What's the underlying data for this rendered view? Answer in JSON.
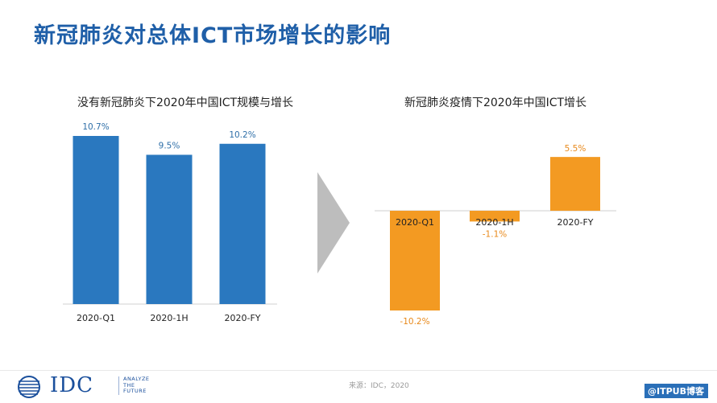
{
  "page": {
    "title": "新冠肺炎对总体ICT市场增长的影响",
    "source": "来源：IDC，2020",
    "watermark": "@ITPUB博客"
  },
  "logo": {
    "name": "IDC",
    "tagline": [
      "ANALYZE",
      "THE",
      "FUTURE"
    ]
  },
  "chart_data": [
    {
      "type": "bar",
      "title": "没有新冠肺炎下2020年中国ICT规模与增长",
      "categories": [
        "2020-Q1",
        "2020-1H",
        "2020-FY"
      ],
      "values": [
        10.7,
        9.5,
        10.2
      ],
      "data_labels": [
        "10.7%",
        "9.5%",
        "10.2%"
      ],
      "unit": "%",
      "ylim": [
        0,
        10.7
      ],
      "color": "#2a78bf",
      "grid": false,
      "legend": "none"
    },
    {
      "type": "bar",
      "title": "新冠肺炎疫情下2020年中国ICT增长",
      "categories": [
        "2020-Q1",
        "2020-1H",
        "2020-FY"
      ],
      "values": [
        -10.2,
        -1.1,
        5.5
      ],
      "data_labels": [
        "-10.2%",
        "-1.1%",
        "5.5%"
      ],
      "unit": "%",
      "ylim": [
        -10.2,
        5.5
      ],
      "color": "#f39a22",
      "grid": false,
      "legend": "none"
    }
  ],
  "colors": {
    "title": "#1f5fa8",
    "left_bars": "#2a78bf",
    "right_bars": "#f39a22",
    "left_labels": "#2f6fa8",
    "right_labels": "#e8891b",
    "arrow": "#bdbdbd"
  }
}
